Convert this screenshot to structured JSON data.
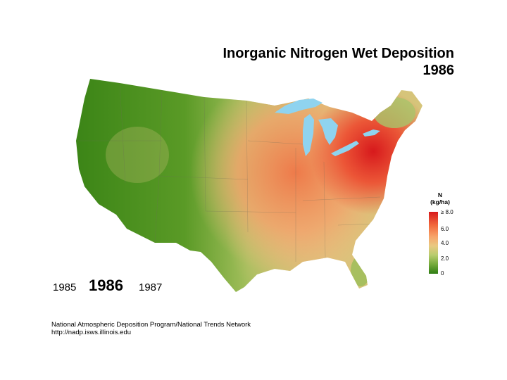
{
  "title": {
    "line1": "Inorganic Nitrogen Wet Deposition",
    "line2": "1986"
  },
  "legend": {
    "title_line1": "N",
    "title_line2": "(kg/ha)",
    "ticks": [
      "≥ 8.0",
      "6.0",
      "4.0",
      "2.0",
      "0"
    ]
  },
  "year_nav": {
    "prev": "1985",
    "current": "1986",
    "next": "1987"
  },
  "source": {
    "line1": "National Atmospheric Deposition Program/National Trends Network",
    "line2": "http://nadp.isws.illinois.edu"
  },
  "colors": {
    "low": "#2f7d12",
    "mid_low": "#74aa3a",
    "mid": "#e9c981",
    "mid_high": "#f26a3c",
    "high": "#d7191c",
    "lakes": "#8fd3ef"
  }
}
